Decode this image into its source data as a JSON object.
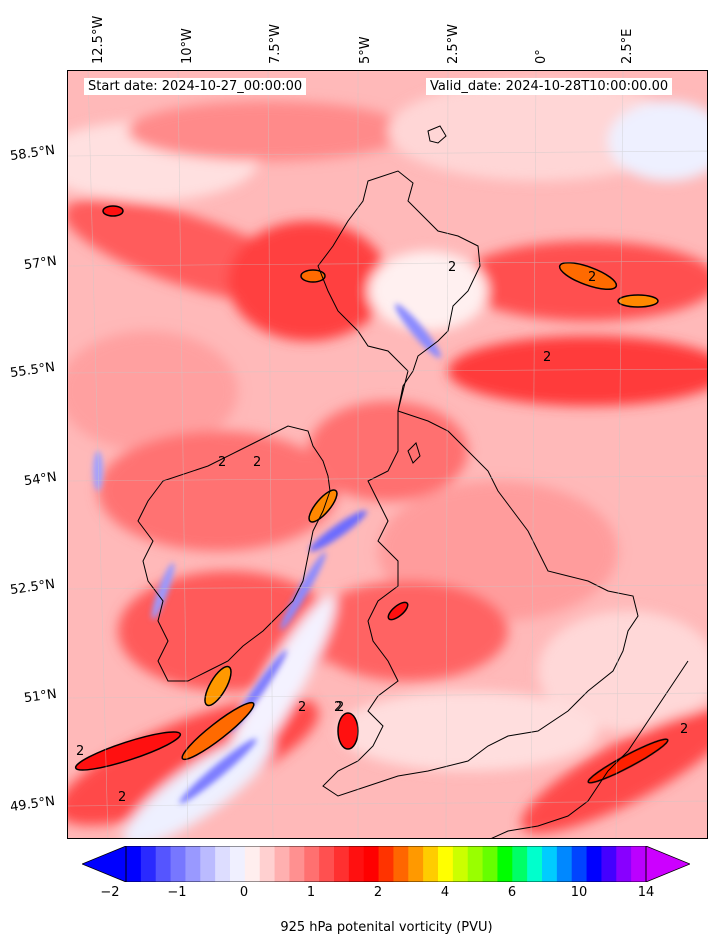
{
  "map": {
    "start_date": "Start date: 2024-10-27_00:00:00",
    "valid_date": "Valid_date: 2024-10-28T10:00:00.00",
    "lon_labels": [
      "12.5°W",
      "10°W",
      "7.5°W",
      "5°W",
      "2.5°W",
      "0°",
      "2.5°E"
    ],
    "lat_labels": [
      "58.5°N",
      "57°N",
      "55.5°N",
      "54°N",
      "52.5°N",
      "51°N",
      "49.5°N"
    ],
    "contour_label": "2"
  },
  "colorbar": {
    "label": "925 hPa potenital vorticity (PVU)",
    "ticks": [
      "−2",
      "−1",
      "0",
      "1",
      "2",
      "4",
      "6",
      "10",
      "14"
    ],
    "colors": [
      "#0000ff",
      "#2a2aff",
      "#5555ff",
      "#7777ff",
      "#9999ff",
      "#bbbbff",
      "#ddddff",
      "#f0f0ff",
      "#ffeeee",
      "#ffd0d0",
      "#ffb0b0",
      "#ff9090",
      "#ff7070",
      "#ff5050",
      "#ff3030",
      "#ff1010",
      "#ff0000",
      "#ff3300",
      "#ff6600",
      "#ff9900",
      "#ffcc00",
      "#ffff00",
      "#ccff00",
      "#99ff00",
      "#66ff00",
      "#00ff00",
      "#00ff66",
      "#00ffcc",
      "#00ccff",
      "#0088ff",
      "#0044ff",
      "#0000ff",
      "#4400ff",
      "#8800ff",
      "#bb00ff"
    ]
  }
}
